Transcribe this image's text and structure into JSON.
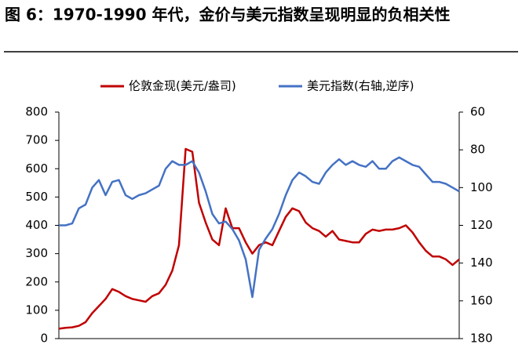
{
  "chart_data": {
    "type": "line",
    "title": "图 6：1970-1990 年代，金价与美元指数呈现明显的负相关性",
    "categories": [
      null,
      null,
      null,
      null,
      null,
      null,
      null,
      null,
      null,
      null,
      null,
      null,
      null,
      null,
      null,
      null,
      null,
      null,
      null,
      null,
      null,
      null,
      null,
      null,
      null,
      null,
      null,
      null,
      null,
      null,
      null,
      null,
      null,
      null,
      null,
      null,
      null,
      null,
      null,
      null,
      null,
      null,
      null,
      null,
      null,
      null,
      null,
      null,
      null,
      null,
      null,
      null,
      null,
      null,
      null,
      null,
      null,
      null,
      null,
      null,
      null
    ],
    "series": [
      {
        "name": "伦敦金现(美元/盎司)",
        "color": "#c00000",
        "values": [
          35,
          38,
          40,
          45,
          58,
          90,
          115,
          140,
          175,
          165,
          150,
          140,
          135,
          130,
          150,
          160,
          190,
          240,
          330,
          670,
          660,
          480,
          410,
          350,
          330,
          460,
          390,
          390,
          340,
          300,
          330,
          340,
          330,
          380,
          430,
          460,
          450,
          410,
          390,
          380,
          360,
          380,
          350,
          345,
          340,
          340,
          370,
          385,
          380,
          385,
          385,
          390,
          400,
          375,
          340,
          310,
          290,
          290,
          280,
          260,
          280
        ]
      },
      {
        "name": "美元指数(右轴,逆序)",
        "color": "#4472c4",
        "axis": "y2",
        "values": [
          120,
          120,
          119,
          111,
          109,
          100,
          96,
          104,
          97,
          96,
          104,
          106,
          104,
          103,
          101,
          99,
          90,
          86,
          88,
          88,
          86,
          92,
          102,
          114,
          119,
          118,
          122,
          128,
          138,
          158,
          133,
          127,
          122,
          114,
          104,
          96,
          92,
          94,
          97,
          98,
          92,
          88,
          85,
          88,
          86,
          88,
          89,
          86,
          90,
          90,
          86,
          84,
          86,
          88,
          89,
          93,
          97,
          97,
          98,
          100,
          102
        ]
      }
    ],
    "ylim": [
      0,
      800
    ],
    "yticks": [
      0,
      100,
      200,
      300,
      400,
      500,
      600,
      700,
      800
    ],
    "y2lim": [
      180,
      60
    ],
    "y2ticks": [
      60,
      80,
      100,
      120,
      140,
      160,
      180
    ]
  }
}
